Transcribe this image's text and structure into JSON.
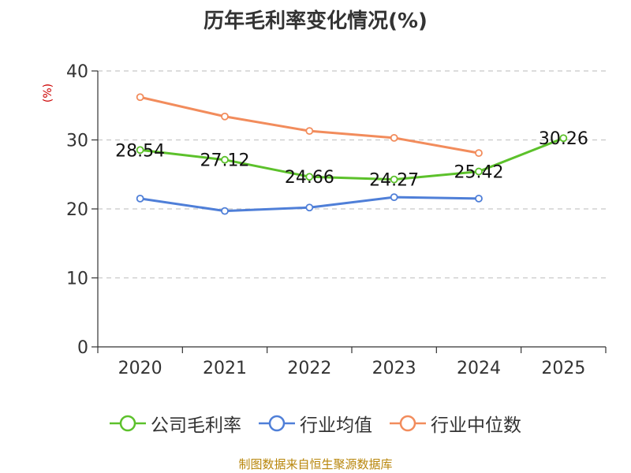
{
  "chart_data": {
    "type": "line",
    "title": "历年毛利率变化情况(%)",
    "ylabel": "(%)",
    "xlabel": "",
    "categories": [
      "2020",
      "2021",
      "2022",
      "2023",
      "2024",
      "2025"
    ],
    "yticks": [
      "0",
      "10",
      "20",
      "30",
      "40"
    ],
    "ylim": [
      0,
      40
    ],
    "grid": true,
    "legend_position": "bottom",
    "series": [
      {
        "name": "公司毛利率",
        "color": "#5cc12b",
        "labeled": true,
        "values": [
          28.54,
          27.12,
          24.66,
          24.27,
          25.42,
          30.26
        ],
        "labels": [
          "28.54",
          "27.12",
          "24.66",
          "24.27",
          "25.42",
          "30.26"
        ]
      },
      {
        "name": "行业均值",
        "color": "#4f7fd8",
        "labeled": false,
        "values": [
          21.5,
          19.7,
          20.2,
          21.7,
          21.5,
          null
        ]
      },
      {
        "name": "行业中位数",
        "color": "#f28c5c",
        "labeled": false,
        "values": [
          36.2,
          33.4,
          31.3,
          30.3,
          28.1,
          null
        ]
      }
    ],
    "source": "制图数据来自恒生聚源数据库"
  }
}
